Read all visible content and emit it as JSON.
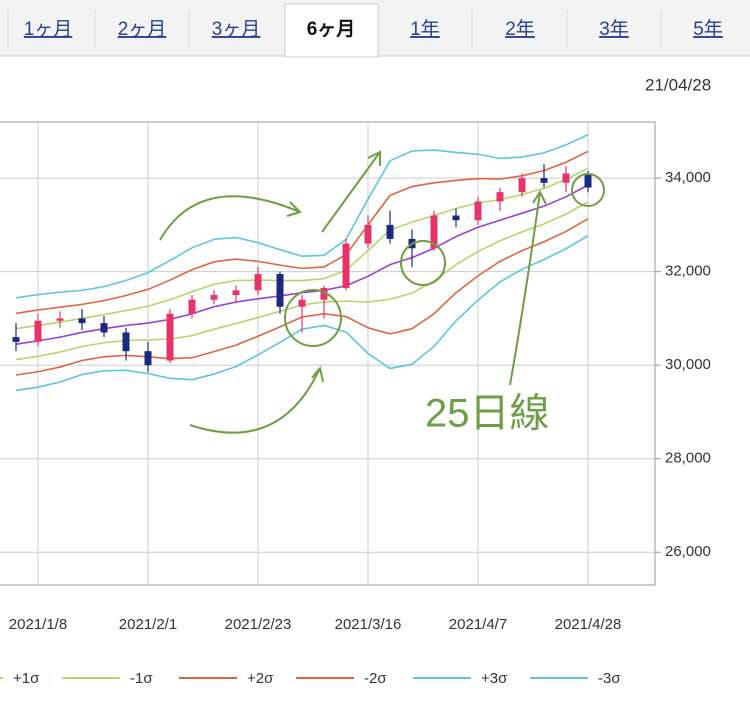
{
  "tabs": [
    "1ヶ月",
    "2ヶ月",
    "3ヶ月",
    "6ヶ月",
    "1年",
    "2年",
    "3年",
    "5年"
  ],
  "selected_tab": 3,
  "date": "21/04/28",
  "chart_data": {
    "type": "candlestick",
    "categories": [
      null,
      "2021/1/8",
      null,
      null,
      null,
      null,
      "2021/2/1",
      null,
      null,
      null,
      null,
      "2021/2/23",
      null,
      null,
      null,
      null,
      "2021/3/16",
      null,
      null,
      null,
      null,
      "2021/4/7",
      null,
      null,
      null,
      null,
      "2021/4/28"
    ],
    "ylim": [
      25300,
      35200
    ],
    "yticks": [
      {
        "value": 26000,
        "label": "26,000"
      },
      {
        "value": 28000,
        "label": "28,000"
      },
      {
        "value": 30000,
        "label": "30,000"
      },
      {
        "value": 32000,
        "label": "32,000"
      },
      {
        "value": 34000,
        "label": "34,000"
      }
    ],
    "grid": true,
    "candles": {
      "open": [
        30600,
        30500,
        30950,
        31000,
        30900,
        30700,
        30300,
        30100,
        31100,
        31400,
        31500,
        31600,
        31950,
        31250,
        31400,
        31650,
        32600,
        33000,
        32700,
        32500,
        33200,
        33100,
        33500,
        33700,
        34000,
        33900,
        34100
      ],
      "high": [
        30900,
        31100,
        31150,
        31200,
        31050,
        30800,
        30500,
        31200,
        31500,
        31600,
        31700,
        32100,
        32000,
        31500,
        31700,
        32700,
        33200,
        33300,
        32900,
        33300,
        33350,
        33600,
        33800,
        34100,
        34300,
        34250,
        34150
      ],
      "low": [
        30300,
        30400,
        30800,
        30750,
        30600,
        30100,
        29850,
        30050,
        31000,
        31300,
        31350,
        31500,
        31100,
        30700,
        31000,
        31600,
        32500,
        32600,
        32100,
        32450,
        32950,
        33000,
        33300,
        33600,
        33800,
        33700,
        33700
      ],
      "close": [
        30500,
        30950,
        31000,
        30900,
        30700,
        30300,
        30000,
        31100,
        31400,
        31500,
        31600,
        31950,
        31250,
        31400,
        31650,
        32600,
        33000,
        32700,
        32500,
        33200,
        33100,
        33500,
        33700,
        34000,
        33900,
        34100,
        33800
      ],
      "up_color": "#e8336a",
      "down_color": "#1b2a80"
    },
    "series": [
      {
        "name": "+1σ",
        "color": "#b8d46a",
        "values": [
          30780,
          30850,
          30920,
          31000,
          31080,
          31170,
          31260,
          31400,
          31570,
          31730,
          31810,
          31820,
          31810,
          31810,
          31850,
          32030,
          32450,
          32890,
          33060,
          33200,
          33350,
          33470,
          33540,
          33650,
          33780,
          33970,
          34210
        ]
      },
      {
        "name": "-1σ",
        "color": "#b8d46a",
        "values": [
          30120,
          30190,
          30280,
          30400,
          30480,
          30530,
          30540,
          30560,
          30630,
          30770,
          30890,
          31020,
          31150,
          31290,
          31350,
          31370,
          31350,
          31410,
          31540,
          31800,
          32150,
          32430,
          32660,
          32850,
          33020,
          33230,
          33490
        ]
      },
      {
        "name": "+2σ",
        "color": "#e2643e",
        "values": [
          31110,
          31180,
          31240,
          31300,
          31380,
          31490,
          31620,
          31820,
          32040,
          32210,
          32270,
          32220,
          32140,
          32070,
          32100,
          32360,
          33000,
          33630,
          33820,
          33900,
          33950,
          33990,
          33980,
          34050,
          34160,
          34340,
          34570
        ]
      },
      {
        "name": "-2σ",
        "color": "#e2643e",
        "values": [
          29790,
          29860,
          29960,
          30100,
          30180,
          30210,
          30180,
          30140,
          30160,
          30290,
          30430,
          30620,
          30820,
          31030,
          31100,
          31040,
          30800,
          30670,
          30780,
          31100,
          31550,
          31910,
          32220,
          32450,
          32640,
          32860,
          33130
        ]
      },
      {
        "name": "+3σ",
        "color": "#5cc6e0",
        "values": [
          31440,
          31510,
          31560,
          31600,
          31680,
          31810,
          31980,
          32240,
          32510,
          32690,
          32730,
          32620,
          32470,
          32330,
          32350,
          32690,
          33550,
          34370,
          34580,
          34600,
          34550,
          34510,
          34420,
          34450,
          34540,
          34710,
          34930
        ]
      },
      {
        "name": "-3σ",
        "color": "#5cc6e0",
        "values": [
          29460,
          29530,
          29640,
          29800,
          29880,
          29890,
          29820,
          29720,
          29690,
          29810,
          29970,
          30220,
          30490,
          30770,
          30850,
          30710,
          30250,
          29930,
          30020,
          30400,
          30950,
          31390,
          31780,
          32050,
          32260,
          32490,
          32770
        ]
      },
      {
        "color": "#9a3fd6",
        "values": [
          30450,
          30520,
          30600,
          30700,
          30780,
          30850,
          30900,
          30980,
          31100,
          31250,
          31350,
          31420,
          31480,
          31550,
          31600,
          31700,
          31900,
          32150,
          32300,
          32500,
          32750,
          32950,
          33100,
          33250,
          33400,
          33600,
          33850
        ]
      }
    ],
    "annotation": "25日線"
  }
}
